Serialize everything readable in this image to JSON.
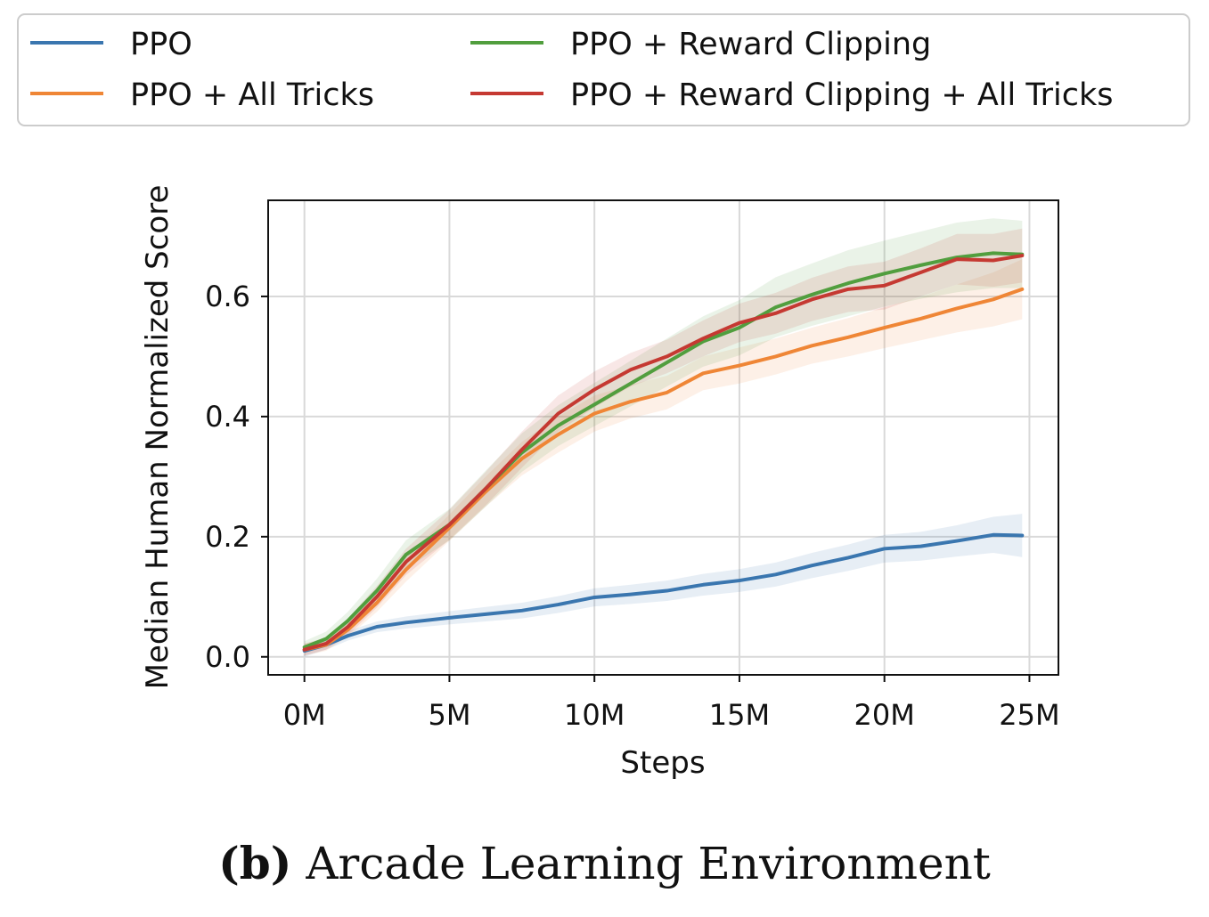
{
  "caption": {
    "label": "(b)",
    "text": "Arcade Learning Environment"
  },
  "chart_data": {
    "type": "line",
    "xlabel": "Steps",
    "ylabel": "Median Human Normalized Score",
    "xlim": [
      -1.25,
      26
    ],
    "ylim": [
      -0.03,
      0.76
    ],
    "xticks": [
      0,
      5,
      10,
      15,
      20,
      25
    ],
    "xtick_labels": [
      "0M",
      "5M",
      "10M",
      "15M",
      "20M",
      "25M"
    ],
    "yticks": [
      0.0,
      0.2,
      0.4,
      0.6
    ],
    "ytick_labels": [
      "0.0",
      "0.2",
      "0.4",
      "0.6"
    ],
    "grid": true,
    "legend_position": "top, above plot, two columns",
    "x": [
      0,
      0.75,
      1.5,
      2.5,
      3.5,
      5,
      6.25,
      7.5,
      8.75,
      10,
      11.25,
      12.5,
      13.75,
      15,
      16.25,
      17.5,
      18.75,
      20,
      21.25,
      22.5,
      23.75,
      24.75
    ],
    "series": [
      {
        "name": "PPO",
        "color": "#3a76af",
        "values": [
          0.01,
          0.02,
          0.035,
          0.05,
          0.057,
          0.065,
          0.071,
          0.077,
          0.087,
          0.099,
          0.104,
          0.11,
          0.12,
          0.127,
          0.137,
          0.152,
          0.165,
          0.18,
          0.184,
          0.193,
          0.203,
          0.202
        ],
        "band": [
          0.01,
          0.008,
          0.008,
          0.009,
          0.01,
          0.011,
          0.012,
          0.013,
          0.014,
          0.015,
          0.016,
          0.017,
          0.018,
          0.019,
          0.02,
          0.021,
          0.022,
          0.023,
          0.024,
          0.026,
          0.03,
          0.036
        ]
      },
      {
        "name": "PPO + All Tricks",
        "color": "#ef8636",
        "values": [
          0.012,
          0.02,
          0.045,
          0.09,
          0.145,
          0.215,
          0.275,
          0.33,
          0.37,
          0.405,
          0.425,
          0.44,
          0.472,
          0.485,
          0.5,
          0.518,
          0.532,
          0.548,
          0.563,
          0.58,
          0.595,
          0.612
        ],
        "band": [
          0.01,
          0.01,
          0.012,
          0.015,
          0.02,
          0.022,
          0.025,
          0.028,
          0.03,
          0.03,
          0.028,
          0.028,
          0.028,
          0.03,
          0.03,
          0.03,
          0.032,
          0.034,
          0.036,
          0.04,
          0.045,
          0.05
        ]
      },
      {
        "name": "PPO + Reward Clipping",
        "color": "#519e3e",
        "values": [
          0.016,
          0.03,
          0.06,
          0.11,
          0.17,
          0.22,
          0.28,
          0.34,
          0.385,
          0.42,
          0.455,
          0.49,
          0.525,
          0.548,
          0.582,
          0.603,
          0.622,
          0.638,
          0.652,
          0.665,
          0.672,
          0.67
        ],
        "band": [
          0.01,
          0.012,
          0.015,
          0.02,
          0.024,
          0.026,
          0.03,
          0.032,
          0.034,
          0.036,
          0.038,
          0.04,
          0.042,
          0.046,
          0.05,
          0.052,
          0.055,
          0.055,
          0.056,
          0.058,
          0.058,
          0.056
        ]
      },
      {
        "name": "PPO + Reward Clipping + All Tricks",
        "color": "#c53932",
        "values": [
          0.012,
          0.022,
          0.05,
          0.1,
          0.158,
          0.22,
          0.28,
          0.345,
          0.405,
          0.445,
          0.478,
          0.5,
          0.53,
          0.556,
          0.572,
          0.595,
          0.612,
          0.618,
          0.64,
          0.662,
          0.66,
          0.668
        ],
        "band": [
          0.01,
          0.01,
          0.014,
          0.018,
          0.022,
          0.025,
          0.028,
          0.03,
          0.03,
          0.03,
          0.028,
          0.028,
          0.03,
          0.032,
          0.034,
          0.036,
          0.038,
          0.04,
          0.04,
          0.042,
          0.044,
          0.045
        ]
      }
    ]
  }
}
